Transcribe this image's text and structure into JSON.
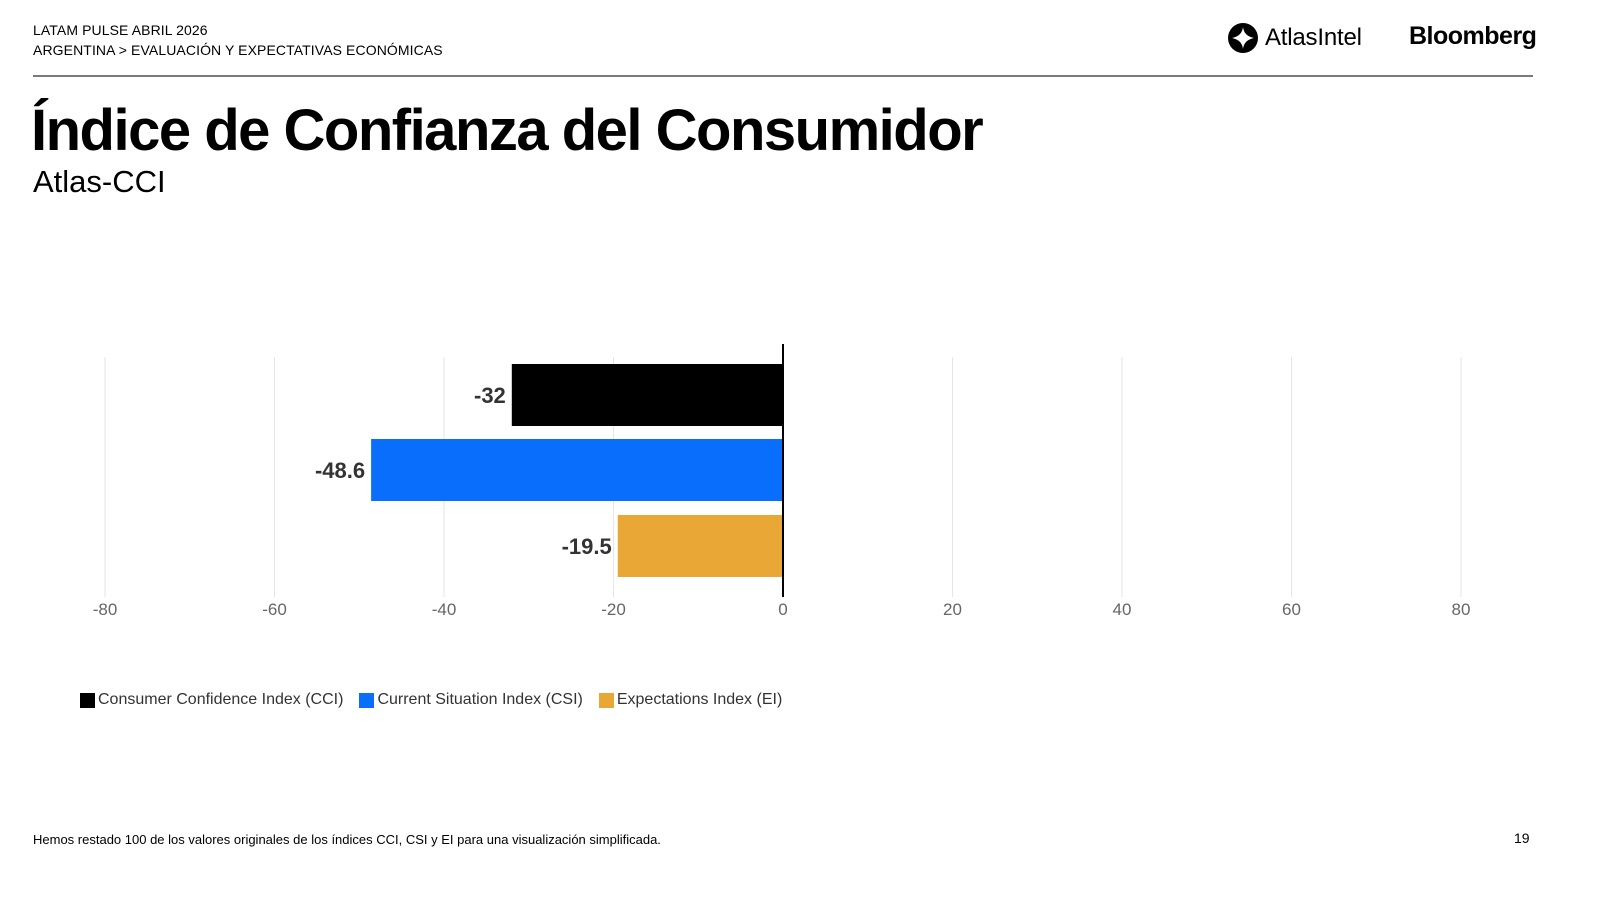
{
  "header": {
    "line1": "LATAM PULSE ABRIL 2026",
    "line2": "ARGENTINA > EVALUACIÓN Y EXPECTATIVAS ECONÓMICAS"
  },
  "logos": {
    "atlas": "AtlasIntel",
    "bloomberg": "Bloomberg"
  },
  "title": "Índice de Confianza del Consumidor",
  "subtitle": "Atlas-CCI",
  "footnote": "Hemos restado 100 de los valores originales de los índices CCI, CSI y EI para una visualización simplificada.",
  "page_number": "19",
  "chart_data": {
    "type": "bar",
    "orientation": "horizontal",
    "title": "",
    "xlabel": "",
    "ylabel": "",
    "xlim": [
      -80,
      80
    ],
    "xticks": [
      -80,
      -60,
      -40,
      -20,
      0,
      20,
      40,
      60,
      80
    ],
    "xtick_labels": [
      "-80",
      "-60",
      "-40",
      "-20",
      "0",
      "20",
      "40",
      "60",
      "80"
    ],
    "grid": true,
    "legend_position": "bottom-left",
    "series": [
      {
        "name": "Consumer Confidence Index (CCI)",
        "value": -32,
        "label": "-32",
        "color": "#000000"
      },
      {
        "name": "Current Situation Index (CSI)",
        "value": -48.6,
        "label": "-48.6",
        "color": "#0a6efd"
      },
      {
        "name": "Expectations Index (EI)",
        "value": -19.5,
        "label": "-19.5",
        "color": "#e9a736"
      }
    ]
  }
}
